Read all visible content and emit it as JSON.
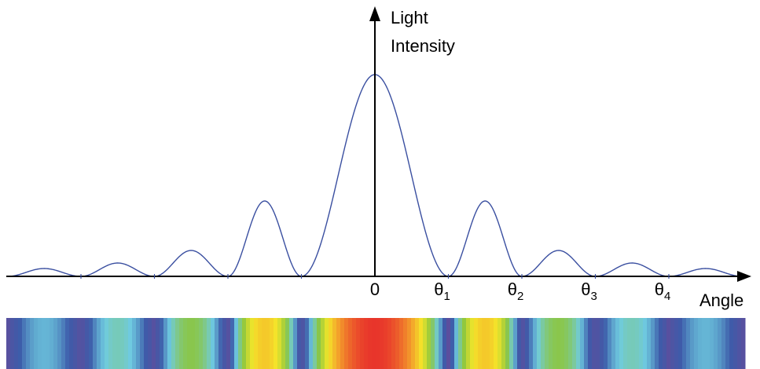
{
  "y_label": [
    "Light",
    "Intensity"
  ],
  "x_label": "Angle",
  "tick_labels": [
    {
      "symbol": "0",
      "subscript": null
    },
    {
      "symbol": "θ",
      "subscript": "1"
    },
    {
      "symbol": "θ",
      "subscript": "2"
    },
    {
      "symbol": "θ",
      "subscript": "3"
    },
    {
      "symbol": "θ",
      "subscript": "4"
    }
  ]
}
